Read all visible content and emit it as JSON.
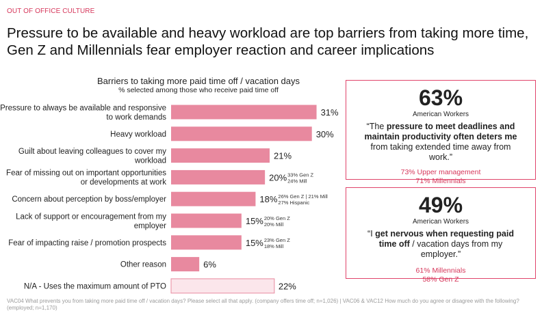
{
  "header": {
    "section": "OUT OF OFFICE CULTURE",
    "title": "Pressure to be available and heavy workload are top barriers from taking more time, Gen Z and Millennials fear employer reaction and career implications"
  },
  "colors": {
    "accent": "#d6365a",
    "bar": "#e8899f",
    "bar_light": "#fbe6eb",
    "box_border": "#e0436a"
  },
  "chart_data": {
    "type": "bar",
    "orientation": "horizontal",
    "title": "Barriers to taking more paid time off / vacation days",
    "subtitle": "% selected among those who receive paid time off",
    "unit": "%",
    "xlim": [
      0,
      35
    ],
    "categories": [
      [
        "Pressure to always be available and responsive",
        "to work demands"
      ],
      [
        "Heavy workload"
      ],
      [
        "Guilt about leaving colleagues to cover my",
        "workload"
      ],
      [
        "Fear of missing out on important opportunities",
        "or developments at work"
      ],
      [
        "Concern about perception by boss/employer"
      ],
      [
        "Lack of support or encouragement from my",
        "employer"
      ],
      [
        "Fear of impacting raise / promotion prospects"
      ],
      [
        "Other reason"
      ],
      [
        "N/A - Uses the maximum amount of PTO"
      ]
    ],
    "values": [
      31,
      30,
      21,
      20,
      18,
      15,
      15,
      6,
      22
    ],
    "value_labels": [
      "31%",
      "30%",
      "21%",
      "20%",
      "18%",
      "15%",
      "15%",
      "6%",
      "22%"
    ],
    "highlight": [
      false,
      false,
      false,
      false,
      false,
      false,
      false,
      false,
      true
    ],
    "notes": [
      [],
      [],
      [],
      [
        "33% Gen Z",
        "24% Mill"
      ],
      [
        "26% Gen Z | 21% Mill",
        "27% Hispanic"
      ],
      [
        "20% Gen Z",
        "20% Mill"
      ],
      [
        "23% Gen Z",
        "18% Mill"
      ],
      [],
      []
    ]
  },
  "callouts": [
    {
      "stat": "63%",
      "who": "American Workers",
      "quote_pre": "“The ",
      "quote_bold": "pressure to meet deadlines and maintain productivity often deters me",
      "quote_post": " from taking extended time away from work.”",
      "details": [
        "73% Upper management",
        "71% Millennials"
      ]
    },
    {
      "stat": "49%",
      "who": "American Workers",
      "quote_pre": "“I ",
      "quote_bold": "get nervous when requesting paid time off",
      "quote_post": " / vacation days from my employer.”",
      "details": [
        "61% Millennials",
        "58% Gen Z"
      ]
    }
  ],
  "footnote": "VAC04 What prevents you from taking more paid time off / vacation days? Please select all that apply. (company offers time off; n=1,026) | VAC06 & VAC12 How much do you agree or disagree with the following? (employed; n=1,170)"
}
